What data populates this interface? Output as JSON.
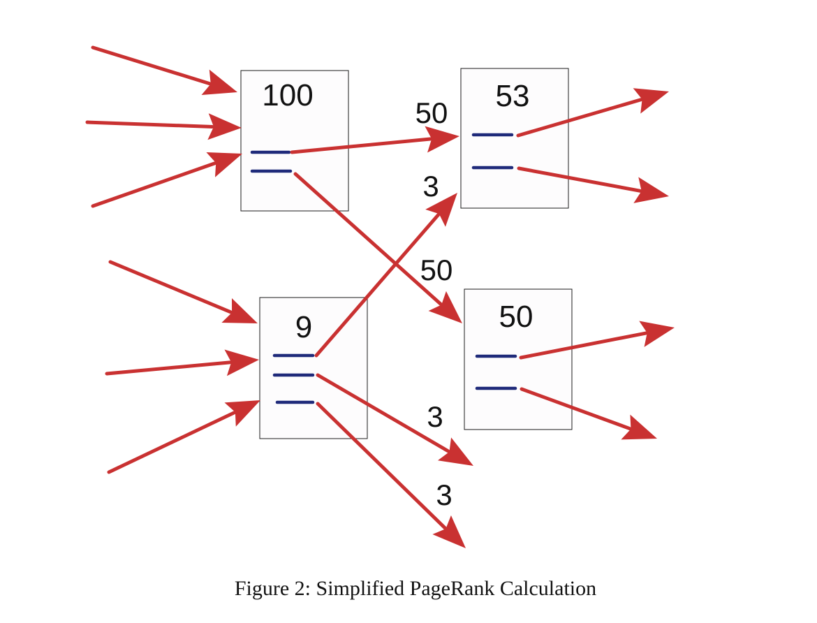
{
  "diagram": {
    "caption": "Figure 2: Simplified PageRank Calculation",
    "colors": {
      "arrow": "#c93131",
      "link_line": "#1f2a7a",
      "box_border": "#1a1a1a"
    },
    "pages": [
      {
        "id": "A",
        "rank": "100",
        "outgoing_links": 2
      },
      {
        "id": "B",
        "rank": "53",
        "outgoing_links": 2
      },
      {
        "id": "C",
        "rank": "9",
        "outgoing_links": 3
      },
      {
        "id": "D",
        "rank": "50",
        "outgoing_links": 2
      }
    ],
    "edges": [
      {
        "from": "A",
        "to": "B",
        "label": "50"
      },
      {
        "from": "A",
        "to": "D",
        "label": "50"
      },
      {
        "from": "C",
        "to": "B",
        "label": "3"
      },
      {
        "from": "C",
        "to": "out",
        "label": "3"
      },
      {
        "from": "C",
        "to": "out",
        "label": "3"
      }
    ]
  }
}
